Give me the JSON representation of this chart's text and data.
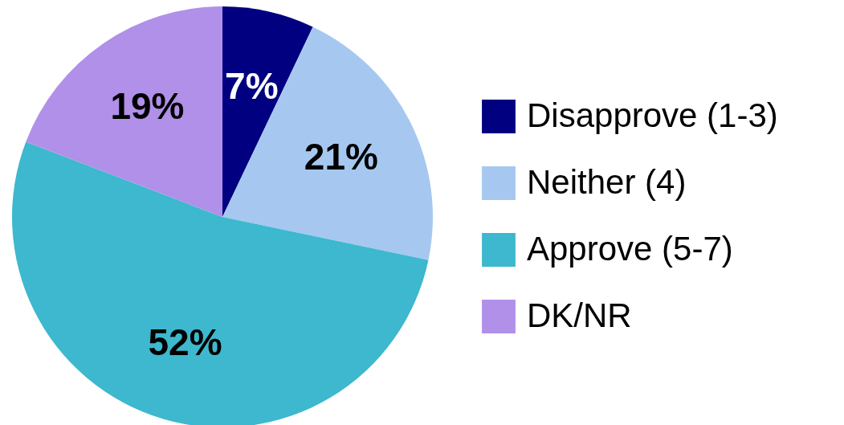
{
  "chart_data": {
    "type": "pie",
    "categories": [
      "Disapprove (1-3)",
      "Neither (4)",
      "Approve (5-7)",
      "DK/NR"
    ],
    "values": [
      7,
      21,
      52,
      19
    ],
    "colors": [
      "#000080",
      "#a6c8f0",
      "#3db8ce",
      "#b090e8"
    ],
    "value_labels": [
      "7%",
      "21%",
      "52%",
      "19%"
    ],
    "legend": "right"
  }
}
